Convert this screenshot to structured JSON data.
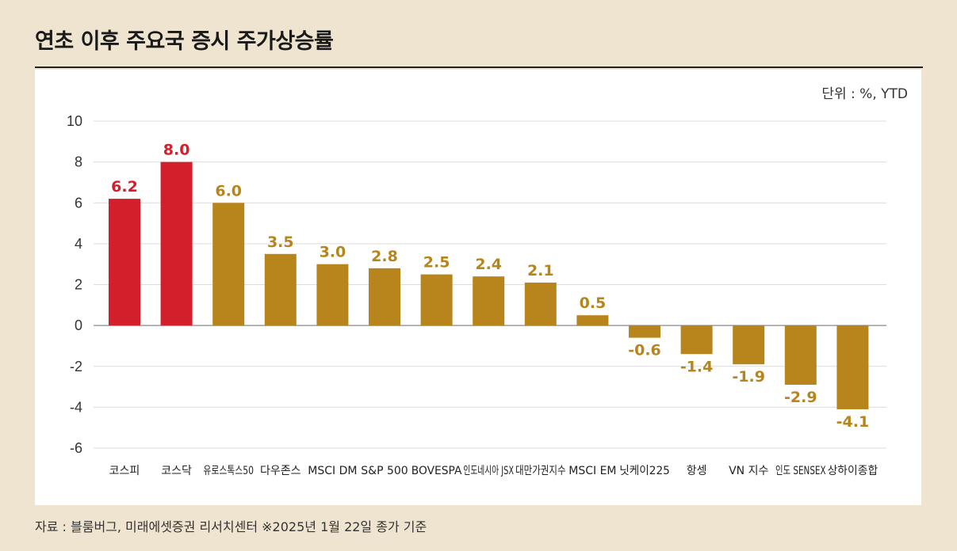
{
  "header": {
    "title": "연초 이후 주요국 증시 주가상승률",
    "unit": "단위 : %, YTD"
  },
  "footer": {
    "source": "자료 : 블룸버그, 미래에셋증권 리서치센터 ※2025년 1월 22일 종가 기준"
  },
  "colors": {
    "highlight": "#d21f2b",
    "default": "#b8841c",
    "grid": "#dcdcdc",
    "zero_line": "#888888"
  },
  "chart_data": {
    "type": "bar",
    "title": "연초 이후 주요국 증시 주가상승률",
    "xlabel": "",
    "ylabel": "",
    "unit": "단위 : %, YTD",
    "ylim": [
      -6,
      10
    ],
    "yticks": [
      10,
      8,
      6,
      4,
      2,
      0,
      -2,
      -4,
      -6
    ],
    "grid": true,
    "categories": [
      "코스피",
      "코스닥",
      "유로스톡스50",
      "다우존스",
      "MSCI DM",
      "S&P 500",
      "BOVESPA",
      "인도네시아 JSX",
      "대만가권지수",
      "MSCI EM",
      "닛케이225",
      "항셍",
      "VN 지수",
      "인도 SENSEX",
      "상하이종합"
    ],
    "values": [
      6.2,
      8.0,
      6.0,
      3.5,
      3.0,
      2.8,
      2.5,
      2.4,
      2.1,
      0.5,
      -0.6,
      -1.4,
      -1.9,
      -2.9,
      -4.1
    ],
    "value_labels": [
      "6.2",
      "8.0",
      "6.0",
      "3.5",
      "3.0",
      "2.8",
      "2.5",
      "2.4",
      "2.1",
      "0.5",
      "-0.6",
      "-1.4",
      "-1.9",
      "-2.9",
      "-4.1"
    ],
    "highlighted": [
      true,
      true,
      false,
      false,
      false,
      false,
      false,
      false,
      false,
      false,
      false,
      false,
      false,
      false,
      false
    ]
  }
}
